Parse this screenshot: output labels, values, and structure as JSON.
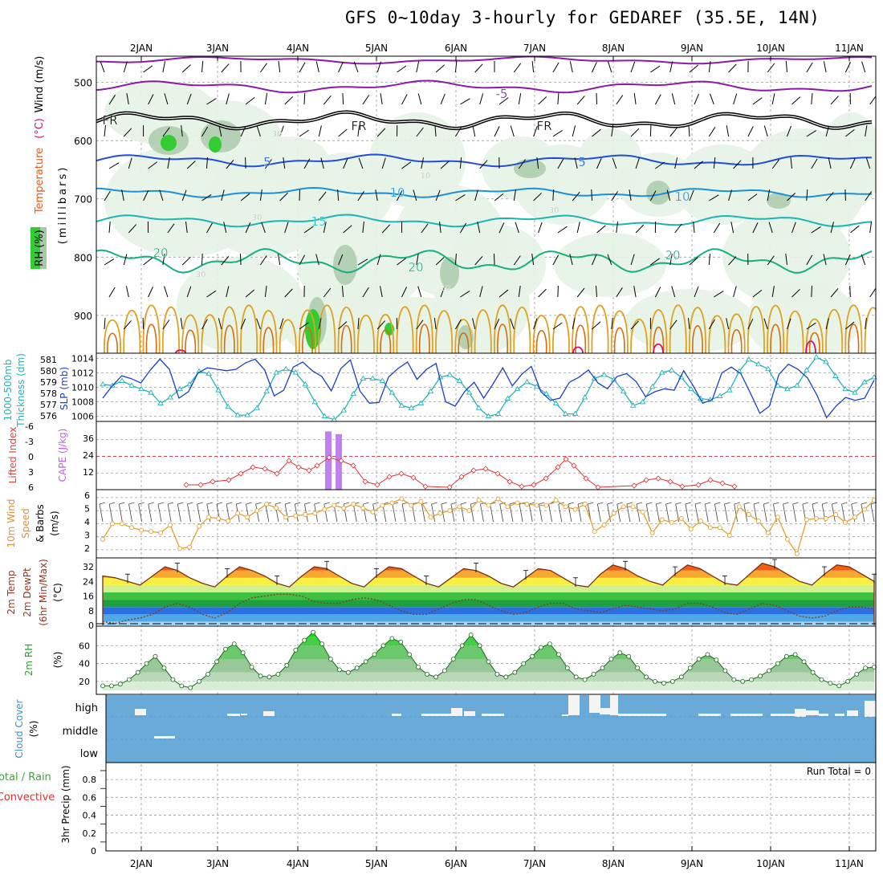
{
  "title": "GFS 0~10day 3-hourly for GEDAREF (35.5E, 14N)",
  "date_labels": [
    "2JAN",
    "3JAN",
    "4JAN",
    "5JAN",
    "6JAN",
    "7JAN",
    "8JAN",
    "9JAN",
    "10JAN",
    "11JAN"
  ],
  "panels": {
    "upper": {
      "ylabel_parts": [
        "RH (%)",
        "Temperature",
        "(°C)",
        "Wind (m/s)",
        "(millibars)"
      ],
      "pressure_ticks": [
        "500",
        "600",
        "700",
        "800",
        "900"
      ],
      "contour_labels": [
        "-5",
        "FR",
        "FR",
        "FR",
        "5",
        "5",
        "10",
        "10",
        "15",
        "20",
        "20",
        "20",
        "30",
        "30",
        "30",
        "30",
        "30",
        "10"
      ]
    },
    "slp": {
      "ylabel_left": [
        "1000-500mb",
        "Thickness (dm)"
      ],
      "ylabel_right": "SLP (mb)",
      "thickness_ticks": [
        "581",
        "580",
        "579",
        "578",
        "577",
        "576"
      ],
      "slp_ticks": [
        "1014",
        "1012",
        "1010",
        "1008",
        "1006"
      ]
    },
    "cape": {
      "ylabel_left": "Lifted Index",
      "ylabel_right": "CAPE (J/kg)",
      "li_ticks": [
        "-6",
        "-3",
        "0",
        "3",
        "6"
      ],
      "cape_ticks": [
        "36",
        "24",
        "12"
      ]
    },
    "wind10": {
      "ylabel": [
        "10m Wind",
        "Speed",
        "& Barbs",
        "(m/s)"
      ],
      "ticks": [
        "6",
        "5",
        "4",
        "3",
        "2"
      ]
    },
    "temp": {
      "ylabel": [
        "2m Temp",
        "2m DewPt",
        "(6hr Min/Max)",
        "(°C)"
      ],
      "ticks": [
        "32",
        "24",
        "16",
        "8",
        "0"
      ]
    },
    "rh": {
      "ylabel": [
        "2m RH",
        "(%)"
      ],
      "ticks": [
        "60",
        "40",
        "20"
      ]
    },
    "cloud": {
      "ylabel": [
        "Cloud Cover",
        "(%)"
      ],
      "levels": [
        "high",
        "middle",
        "low"
      ]
    },
    "precip": {
      "ylabel_left": [
        "Total / Rain",
        "Convective"
      ],
      "ylabel_right": [
        "3hr Precip (mm)"
      ],
      "ticks": [
        "0.8",
        "0.6",
        "0.4",
        "0.2",
        "0"
      ],
      "run_total": "Run Total = 0"
    }
  },
  "chart_data": [
    {
      "type": "line",
      "name": "1000-500mb thickness (dm)",
      "ylim": [
        576,
        581.5
      ],
      "values": [
        579,
        578.9,
        579.3,
        578.9,
        578.6,
        578.3,
        577.4,
        577.9,
        578.6,
        579,
        580.1,
        579.9,
        578.5,
        577.1,
        576.4,
        576.4,
        577,
        578.4,
        580,
        580.3,
        580,
        579,
        577.5,
        576.3,
        576,
        576.8,
        578.2,
        579.5,
        579.5,
        579.3,
        578.3,
        577.2,
        577,
        577.4,
        578.4,
        579.6,
        579.8,
        579.3,
        578.3,
        577,
        576.3,
        576.5,
        577.8,
        578.6,
        579.2,
        578.8,
        578.2,
        577.4,
        576.5,
        576.5,
        577.9,
        579.5,
        579.8,
        579.4,
        578.4,
        577.2,
        577.5,
        578.8,
        580,
        580.2,
        579.6,
        578.6,
        577.8,
        577.7,
        578,
        578.5,
        580.1,
        581.1,
        580.7,
        580.3,
        578.9,
        578.6,
        578.9,
        580.2,
        581.3,
        580.9,
        579.7,
        578.6,
        578.3,
        579.2,
        579.6
      ]
    },
    {
      "type": "line",
      "name": "SLP (mb)",
      "ylim": [
        1005.5,
        1014.5
      ],
      "values": [
        1008.5,
        1010.2,
        1011.6,
        1011.2,
        1010.6,
        1012.4,
        1013.9,
        1012.5,
        1008.5,
        1009.4,
        1012,
        1012.7,
        1012.5,
        1012.3,
        1012.5,
        1013.4,
        1013.9,
        1012.4,
        1008.8,
        1009.6,
        1012.8,
        1013.5,
        1012.3,
        1011.5,
        1009.5,
        1012.6,
        1013.8,
        1009.5,
        1007.8,
        1007.9,
        1011.4,
        1012.6,
        1013.5,
        1011.1,
        1012.5,
        1013.3,
        1008,
        1007.4,
        1009.4,
        1010.7,
        1008.5,
        1010.5,
        1012.7,
        1010.2,
        1011.8,
        1012.9,
        1009.4,
        1008.2,
        1008.5,
        1010.7,
        1011.4,
        1012.4,
        1010.6,
        1009.8,
        1011.5,
        1011.9,
        1010.8,
        1008.7,
        1009.4,
        1009.8,
        1009.6,
        1012.3,
        1010.2,
        1007.8,
        1008.3,
        1012,
        1012.8,
        1011.9,
        1009.2,
        1006.4,
        1007.4,
        1011.8,
        1013.2,
        1012.5,
        1011.3,
        1008.9,
        1005.8,
        1007.4,
        1008.6,
        1008.2,
        1008.5,
        1011
      ]
    },
    {
      "type": "line",
      "name": "Lifted Index",
      "ylim": [
        -6,
        6
      ],
      "units": "°C",
      "values_note": "displayed where stable, approx 0 to 6"
    },
    {
      "type": "bar",
      "name": "CAPE (J/kg)",
      "categories": [
        "4JAN 09Z",
        "4JAN 12Z"
      ],
      "values": [
        42,
        40
      ]
    },
    {
      "type": "line",
      "name": "10m Wind Speed (m/s)",
      "ylim": [
        1.5,
        6.3
      ],
      "values": [
        2.8,
        4,
        4,
        3.7,
        3.5,
        3.4,
        3.3,
        3.9,
        2.1,
        2.2,
        3.8,
        4.5,
        4.4,
        4.2,
        4.8,
        4.5,
        5,
        5.5,
        5.2,
        4.5,
        4.6,
        4.7,
        4.8,
        5.1,
        5.4,
        5.2,
        5.5,
        5.2,
        4.9,
        5.4,
        5.6,
        5.9,
        5.4,
        5.7,
        4.5,
        4.8,
        5,
        5.3,
        5,
        5.8,
        5.4,
        5.9,
        5.3,
        5.6,
        5.5,
        5.4,
        5.4,
        5.8,
        5.3,
        5.1,
        5.5,
        3.4,
        3.9,
        4.8,
        5.3,
        5.3,
        4.9,
        3.3,
        4.3,
        4.1,
        4.4,
        3.6,
        4.2,
        3.7,
        3.7,
        3.1,
        5.3,
        4.7,
        4.2,
        3.3,
        4.5,
        2.8,
        1.7,
        4.3,
        4.4,
        4.4,
        4.7,
        4.1,
        4.5,
        5.1,
        5.8
      ]
    },
    {
      "type": "area",
      "name": "2m Temperature (°C)",
      "ylim": [
        0,
        36
      ],
      "values": [
        27,
        26,
        24,
        22,
        27,
        32,
        30,
        26,
        23,
        21,
        27,
        32,
        30,
        27,
        23,
        21,
        27,
        32,
        31,
        27,
        23,
        21,
        27,
        32,
        31,
        27,
        23,
        21,
        26,
        31,
        30,
        27,
        23,
        21,
        26,
        31,
        30,
        26,
        22,
        21,
        28,
        33,
        31,
        27,
        24,
        22,
        28,
        33,
        31,
        27,
        23,
        22,
        28,
        34,
        32,
        28,
        24,
        22,
        28,
        33,
        32,
        28,
        24
      ]
    },
    {
      "type": "line",
      "name": "2m Dew Point (°C)",
      "ylim": [
        0,
        36
      ],
      "values": [
        2,
        1,
        3,
        4,
        6,
        10,
        12,
        10,
        6,
        4,
        7,
        12,
        15,
        16,
        17,
        17,
        16,
        13,
        12,
        12,
        14,
        15,
        14,
        11,
        8,
        6,
        6,
        9,
        12,
        14,
        14,
        11,
        8,
        6,
        7,
        10,
        12,
        12,
        9,
        8,
        7,
        9,
        11,
        10,
        9,
        8,
        9,
        12,
        12,
        10,
        7,
        6,
        9,
        12,
        11,
        8,
        5,
        4,
        5,
        8,
        10,
        10,
        9
      ]
    },
    {
      "type": "area",
      "name": "2m RH (%)",
      "ylim": [
        10,
        80
      ],
      "values": [
        15,
        15,
        17,
        22,
        30,
        40,
        48,
        35,
        22,
        15,
        13,
        20,
        28,
        42,
        56,
        62,
        52,
        36,
        26,
        25,
        28,
        38,
        55,
        66,
        75,
        62,
        45,
        33,
        30,
        35,
        42,
        50,
        60,
        68,
        64,
        50,
        36,
        28,
        25,
        32,
        45,
        60,
        72,
        60,
        42,
        28,
        25,
        30,
        40,
        48,
        58,
        62,
        50,
        35,
        25,
        22,
        28,
        35,
        45,
        52,
        48,
        35,
        25,
        20,
        18,
        20,
        25,
        35,
        45,
        50,
        44,
        32,
        22,
        20,
        22,
        26,
        32,
        40,
        48,
        50,
        42,
        30,
        22,
        18,
        15,
        20,
        28,
        35,
        36
      ]
    },
    {
      "type": "bar",
      "name": "Cloud Cover (%) high",
      "values_note": "mostly 0 with sporadic high cloud up to ~100% near 7JAN 12Z–8JAN 03Z"
    },
    {
      "type": "bar",
      "name": "3hr Precip (mm)",
      "ylim": [
        0,
        1
      ],
      "values_note": "all 0",
      "run_total": 0
    }
  ]
}
